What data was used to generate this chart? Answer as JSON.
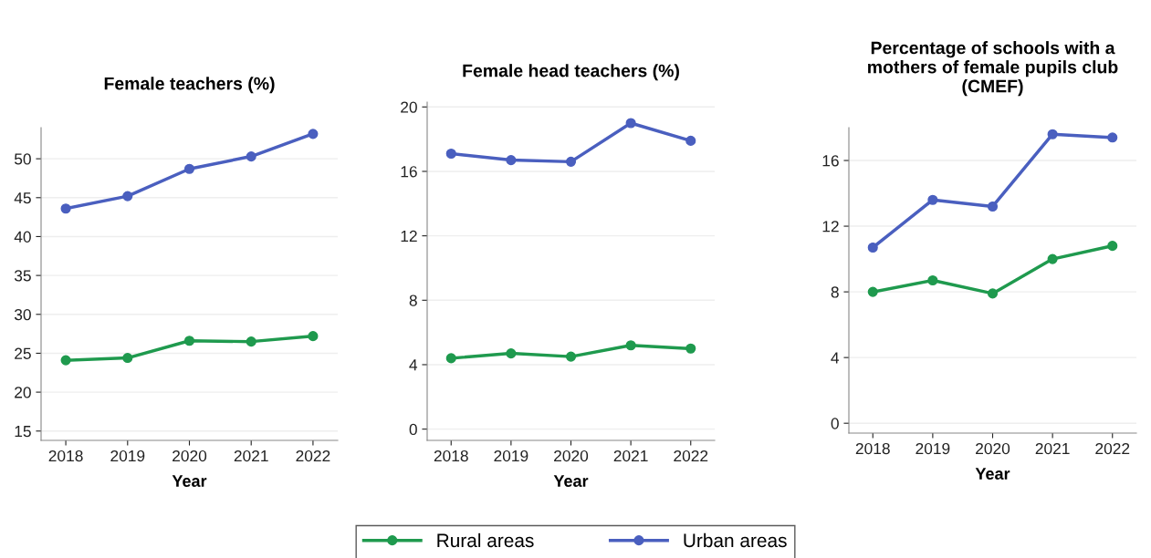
{
  "chart_data": [
    {
      "type": "line",
      "title": "Female teachers (%)",
      "xlabel": "Year",
      "categories": [
        "2018",
        "2019",
        "2020",
        "2021",
        "2022"
      ],
      "ylim": [
        13.8,
        54
      ],
      "yticks": [
        15,
        20,
        25,
        30,
        35,
        40,
        45,
        50
      ],
      "grid": "y",
      "marker": "circle",
      "legend": "bottom",
      "series": [
        {
          "name": "Rural areas",
          "color": "#1f9a4e",
          "values": [
            24.1,
            24.4,
            26.6,
            26.5,
            27.2
          ]
        },
        {
          "name": "Urban areas",
          "color": "#4a5fbf",
          "values": [
            43.6,
            45.2,
            48.7,
            50.3,
            53.2
          ]
        }
      ]
    },
    {
      "type": "line",
      "title": "Female head teachers (%)",
      "xlabel": "Year",
      "categories": [
        "2018",
        "2019",
        "2020",
        "2021",
        "2022"
      ],
      "ylim": [
        -0.7,
        20.3
      ],
      "yticks": [
        0,
        4,
        8,
        12,
        16,
        20
      ],
      "grid": "y",
      "marker": "circle",
      "series": [
        {
          "color": "#1f9a4e",
          "values": [
            4.4,
            4.7,
            4.5,
            5.2,
            5.0
          ]
        },
        {
          "color": "#4a5fbf",
          "values": [
            17.1,
            16.7,
            16.6,
            19.0,
            17.9
          ]
        }
      ]
    },
    {
      "type": "line",
      "title": "Percentage of schools with a mothers of female pupils club (CMEF)",
      "xlabel": "Year",
      "categories": [
        "2018",
        "2019",
        "2020",
        "2021",
        "2022"
      ],
      "ylim": [
        -0.6,
        18
      ],
      "yticks": [
        0,
        4,
        8,
        12,
        16
      ],
      "grid": "y",
      "marker": "circle",
      "series": [
        {
          "color": "#1f9a4e",
          "values": [
            8.0,
            8.7,
            7.9,
            10.0,
            10.8
          ]
        },
        {
          "color": "#4a5fbf",
          "values": [
            10.7,
            13.6,
            13.2,
            17.6,
            17.4
          ]
        }
      ]
    }
  ]
}
